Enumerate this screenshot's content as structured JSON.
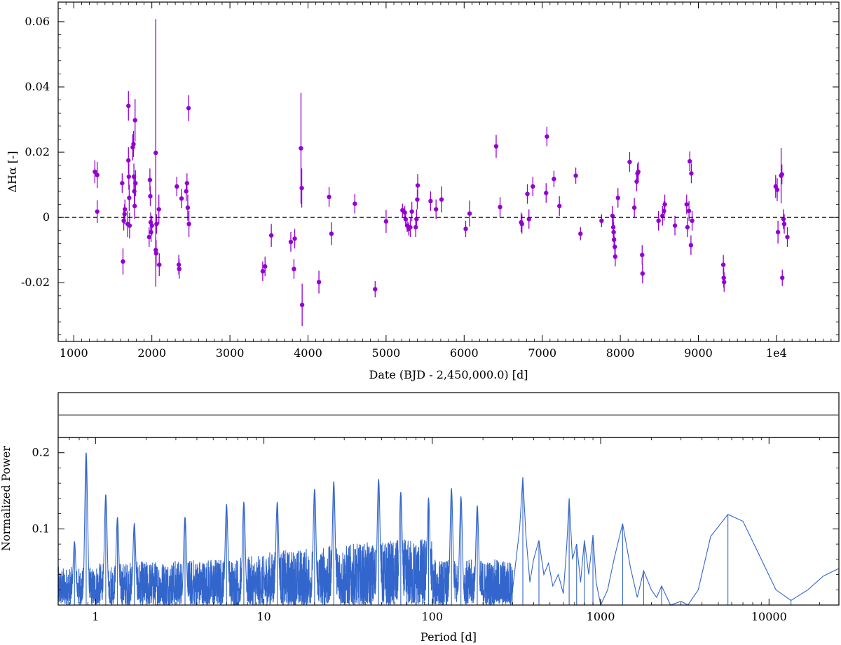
{
  "colors": {
    "points": "#9400d3",
    "periodogram": "#3366cc",
    "zero_line": "#000000",
    "frame": "#000000"
  },
  "chart_data": [
    {
      "type": "scatter",
      "xlabel": "Date (BJD - 2,450,000.0) [d]",
      "ylabel": "ΔHα [-]",
      "xlim": [
        800,
        10800
      ],
      "ylim": [
        -0.038,
        0.066
      ],
      "x_ticks": [
        1000,
        2000,
        3000,
        4000,
        5000,
        6000,
        7000,
        8000,
        9000,
        10000
      ],
      "x_tick_labels": [
        "1000",
        "2000",
        "3000",
        "4000",
        "5000",
        "6000",
        "7000",
        "8000",
        "9000",
        "1e4"
      ],
      "y_ticks": [
        -0.02,
        0,
        0.02,
        0.04,
        0.06
      ],
      "y_tick_labels": [
        "-0.02",
        "0",
        "0.02",
        "0.04",
        "0.06"
      ],
      "reference_line": {
        "y": 0,
        "style": "dashed"
      },
      "grid": false,
      "points": [
        {
          "x": 1270,
          "y": 0.014,
          "err": 0.0035
        },
        {
          "x": 1300,
          "y": 0.013,
          "err": 0.004
        },
        {
          "x": 1300,
          "y": 0.0018,
          "err": 0.0035
        },
        {
          "x": 1620,
          "y": 0.0105,
          "err": 0.003
        },
        {
          "x": 1630,
          "y": -0.0135,
          "err": 0.004
        },
        {
          "x": 1640,
          "y": -0.001,
          "err": 0.003
        },
        {
          "x": 1650,
          "y": 0.001,
          "err": 0.003
        },
        {
          "x": 1655,
          "y": 0.0025,
          "err": 0.003
        },
        {
          "x": 1690,
          "y": -0.002,
          "err": 0.004
        },
        {
          "x": 1700,
          "y": 0.0342,
          "err": 0.0045
        },
        {
          "x": 1700,
          "y": 0.0175,
          "err": 0.004
        },
        {
          "x": 1705,
          "y": 0.0125,
          "err": 0.004
        },
        {
          "x": 1710,
          "y": 0.006,
          "err": 0.004
        },
        {
          "x": 1715,
          "y": -0.0025,
          "err": 0.004
        },
        {
          "x": 1755,
          "y": 0.0215,
          "err": 0.004
        },
        {
          "x": 1765,
          "y": 0.0225,
          "err": 0.004
        },
        {
          "x": 1770,
          "y": 0.0125,
          "err": 0.004
        },
        {
          "x": 1775,
          "y": 0.008,
          "err": 0.004
        },
        {
          "x": 1780,
          "y": 0.0035,
          "err": 0.004
        },
        {
          "x": 1785,
          "y": 0.0298,
          "err": 0.0065
        },
        {
          "x": 1790,
          "y": 0.0105,
          "err": 0.004
        },
        {
          "x": 1965,
          "y": -0.006,
          "err": 0.003
        },
        {
          "x": 1975,
          "y": 0.0115,
          "err": 0.0035
        },
        {
          "x": 1980,
          "y": 0.0065,
          "err": 0.003
        },
        {
          "x": 1985,
          "y": -0.0015,
          "err": 0.003
        },
        {
          "x": 1990,
          "y": -0.0045,
          "err": 0.003
        },
        {
          "x": 2000,
          "y": -0.0025,
          "err": 0.003
        },
        {
          "x": 2050,
          "y": 0.0198,
          "err": 0.041
        },
        {
          "x": 2050,
          "y": -0.01,
          "err": 0.004
        },
        {
          "x": 2055,
          "y": -0.011,
          "err": 0.004
        },
        {
          "x": 2060,
          "y": -0.002,
          "err": 0.003
        },
        {
          "x": 2090,
          "y": 0.0025,
          "err": 0.0045
        },
        {
          "x": 2095,
          "y": -0.0145,
          "err": 0.0035
        },
        {
          "x": 2320,
          "y": 0.0095,
          "err": 0.003
        },
        {
          "x": 2345,
          "y": -0.0145,
          "err": 0.003
        },
        {
          "x": 2350,
          "y": -0.0158,
          "err": 0.003
        },
        {
          "x": 2380,
          "y": 0.0058,
          "err": 0.003
        },
        {
          "x": 2440,
          "y": 0.008,
          "err": 0.003
        },
        {
          "x": 2450,
          "y": 0.0105,
          "err": 0.003
        },
        {
          "x": 2460,
          "y": 0.003,
          "err": 0.004
        },
        {
          "x": 2470,
          "y": 0.0335,
          "err": 0.004
        },
        {
          "x": 2475,
          "y": -0.002,
          "err": 0.004
        },
        {
          "x": 3420,
          "y": -0.0165,
          "err": 0.003
        },
        {
          "x": 3450,
          "y": -0.015,
          "err": 0.003
        },
        {
          "x": 3530,
          "y": -0.0055,
          "err": 0.0035
        },
        {
          "x": 3780,
          "y": -0.0075,
          "err": 0.003
        },
        {
          "x": 3820,
          "y": -0.0158,
          "err": 0.003
        },
        {
          "x": 3830,
          "y": -0.0065,
          "err": 0.003
        },
        {
          "x": 3910,
          "y": 0.0212,
          "err": 0.017
        },
        {
          "x": 3920,
          "y": 0.009,
          "err": 0.006
        },
        {
          "x": 3925,
          "y": -0.0268,
          "err": 0.0065
        },
        {
          "x": 4140,
          "y": -0.0198,
          "err": 0.0035
        },
        {
          "x": 4270,
          "y": 0.0063,
          "err": 0.003
        },
        {
          "x": 4300,
          "y": -0.005,
          "err": 0.0035
        },
        {
          "x": 4600,
          "y": 0.0042,
          "err": 0.003
        },
        {
          "x": 4860,
          "y": -0.022,
          "err": 0.0025
        },
        {
          "x": 5000,
          "y": -0.0012,
          "err": 0.0035
        },
        {
          "x": 5210,
          "y": 0.0022,
          "err": 0.002
        },
        {
          "x": 5240,
          "y": 0.0015,
          "err": 0.002
        },
        {
          "x": 5250,
          "y": -0.0005,
          "err": 0.002
        },
        {
          "x": 5270,
          "y": -0.0025,
          "err": 0.002
        },
        {
          "x": 5290,
          "y": -0.0035,
          "err": 0.002
        },
        {
          "x": 5310,
          "y": -0.003,
          "err": 0.003
        },
        {
          "x": 5330,
          "y": 0.0018,
          "err": 0.003
        },
        {
          "x": 5380,
          "y": -0.003,
          "err": 0.003
        },
        {
          "x": 5390,
          "y": -0.0005,
          "err": 0.003
        },
        {
          "x": 5400,
          "y": 0.0055,
          "err": 0.003
        },
        {
          "x": 5405,
          "y": 0.0098,
          "err": 0.0035
        },
        {
          "x": 5570,
          "y": 0.005,
          "err": 0.003
        },
        {
          "x": 5640,
          "y": 0.0025,
          "err": 0.003
        },
        {
          "x": 5710,
          "y": 0.0055,
          "err": 0.004
        },
        {
          "x": 6020,
          "y": -0.0035,
          "err": 0.0025
        },
        {
          "x": 6070,
          "y": 0.0012,
          "err": 0.004
        },
        {
          "x": 6410,
          "y": 0.0218,
          "err": 0.0035
        },
        {
          "x": 6460,
          "y": 0.0032,
          "err": 0.003
        },
        {
          "x": 6730,
          "y": -0.0015,
          "err": 0.003
        },
        {
          "x": 6740,
          "y": -0.002,
          "err": 0.003
        },
        {
          "x": 6810,
          "y": 0.0072,
          "err": 0.003
        },
        {
          "x": 6830,
          "y": -0.0005,
          "err": 0.003
        },
        {
          "x": 6880,
          "y": 0.0095,
          "err": 0.003
        },
        {
          "x": 7050,
          "y": 0.0075,
          "err": 0.003
        },
        {
          "x": 7060,
          "y": 0.0248,
          "err": 0.003
        },
        {
          "x": 7150,
          "y": 0.0118,
          "err": 0.0025
        },
        {
          "x": 7220,
          "y": 0.0035,
          "err": 0.003
        },
        {
          "x": 7430,
          "y": 0.0128,
          "err": 0.0025
        },
        {
          "x": 7490,
          "y": -0.005,
          "err": 0.002
        },
        {
          "x": 7760,
          "y": -0.001,
          "err": 0.002
        },
        {
          "x": 7900,
          "y": 0.0005,
          "err": 0.003
        },
        {
          "x": 7910,
          "y": -0.003,
          "err": 0.003
        },
        {
          "x": 7915,
          "y": -0.0045,
          "err": 0.003
        },
        {
          "x": 7920,
          "y": -0.0068,
          "err": 0.003
        },
        {
          "x": 7930,
          "y": -0.009,
          "err": 0.003
        },
        {
          "x": 7935,
          "y": -0.012,
          "err": 0.003
        },
        {
          "x": 7970,
          "y": 0.006,
          "err": 0.003
        },
        {
          "x": 8120,
          "y": 0.017,
          "err": 0.003
        },
        {
          "x": 8180,
          "y": 0.003,
          "err": 0.003
        },
        {
          "x": 8210,
          "y": 0.011,
          "err": 0.003
        },
        {
          "x": 8220,
          "y": 0.0135,
          "err": 0.003
        },
        {
          "x": 8230,
          "y": 0.014,
          "err": 0.003
        },
        {
          "x": 8280,
          "y": -0.0115,
          "err": 0.003
        },
        {
          "x": 8285,
          "y": -0.0172,
          "err": 0.003
        },
        {
          "x": 8490,
          "y": -0.001,
          "err": 0.003
        },
        {
          "x": 8540,
          "y": 0.0005,
          "err": 0.003
        },
        {
          "x": 8560,
          "y": 0.002,
          "err": 0.003
        },
        {
          "x": 8570,
          "y": 0.004,
          "err": 0.003
        },
        {
          "x": 8700,
          "y": -0.0025,
          "err": 0.003
        },
        {
          "x": 8850,
          "y": 0.004,
          "err": 0.003
        },
        {
          "x": 8860,
          "y": -0.003,
          "err": 0.003
        },
        {
          "x": 8880,
          "y": 0.002,
          "err": 0.003
        },
        {
          "x": 8890,
          "y": 0.0172,
          "err": 0.003
        },
        {
          "x": 8905,
          "y": -0.0085,
          "err": 0.003
        },
        {
          "x": 8910,
          "y": 0.0135,
          "err": 0.003
        },
        {
          "x": 8920,
          "y": -0.001,
          "err": 0.003
        },
        {
          "x": 9320,
          "y": -0.0145,
          "err": 0.003
        },
        {
          "x": 9325,
          "y": -0.0185,
          "err": 0.003
        },
        {
          "x": 9330,
          "y": -0.0198,
          "err": 0.003
        },
        {
          "x": 9990,
          "y": 0.0095,
          "err": 0.0035
        },
        {
          "x": 10010,
          "y": 0.0085,
          "err": 0.0035
        },
        {
          "x": 10020,
          "y": -0.0045,
          "err": 0.0035
        },
        {
          "x": 10060,
          "y": 0.0128,
          "err": 0.0085
        },
        {
          "x": 10070,
          "y": 0.0132,
          "err": 0.003
        },
        {
          "x": 10075,
          "y": -0.0185,
          "err": 0.0025
        },
        {
          "x": 10090,
          "y": -0.0005,
          "err": 0.003
        },
        {
          "x": 10100,
          "y": -0.002,
          "err": 0.003
        },
        {
          "x": 10140,
          "y": -0.006,
          "err": 0.003
        }
      ]
    },
    {
      "type": "line",
      "xlabel": "Period [d]",
      "ylabel": "Normalized Power",
      "x_scale": "log",
      "xlim": [
        0.6,
        26000
      ],
      "ylim": [
        0,
        0.22
      ],
      "x_ticks": [
        1,
        10,
        100,
        1000,
        10000
      ],
      "x_tick_labels": [
        "1",
        "10",
        "100",
        "1000",
        "10000"
      ],
      "y_ticks": [
        0.1,
        0.2
      ],
      "y_tick_labels": [
        "0.1",
        "0.2"
      ],
      "grid": false,
      "header_band": true,
      "peaks": [
        {
          "x": 0.75,
          "y": 0.083
        },
        {
          "x": 0.88,
          "y": 0.2
        },
        {
          "x": 1.15,
          "y": 0.145
        },
        {
          "x": 1.35,
          "y": 0.115
        },
        {
          "x": 1.7,
          "y": 0.107
        },
        {
          "x": 3.4,
          "y": 0.115
        },
        {
          "x": 6.0,
          "y": 0.132
        },
        {
          "x": 7.6,
          "y": 0.135
        },
        {
          "x": 12.0,
          "y": 0.135
        },
        {
          "x": 20.0,
          "y": 0.152
        },
        {
          "x": 26.0,
          "y": 0.162
        },
        {
          "x": 48.0,
          "y": 0.165
        },
        {
          "x": 65.0,
          "y": 0.148
        },
        {
          "x": 95.0,
          "y": 0.14
        },
        {
          "x": 130.0,
          "y": 0.153
        },
        {
          "x": 148.0,
          "y": 0.142
        },
        {
          "x": 185.0,
          "y": 0.13
        },
        {
          "x": 345.0,
          "y": 0.168
        },
        {
          "x": 430.0,
          "y": 0.085
        },
        {
          "x": 650.0,
          "y": 0.14
        },
        {
          "x": 720.0,
          "y": 0.08
        },
        {
          "x": 800.0,
          "y": 0.085
        },
        {
          "x": 900.0,
          "y": 0.092
        },
        {
          "x": 1350.0,
          "y": 0.107
        },
        {
          "x": 1800.0,
          "y": 0.045
        },
        {
          "x": 2300.0,
          "y": 0.025
        },
        {
          "x": 5700.0,
          "y": 0.119
        },
        {
          "x": 13500.0,
          "y": 0.006
        },
        {
          "x": 26000.0,
          "y": 0.048
        }
      ]
    }
  ]
}
